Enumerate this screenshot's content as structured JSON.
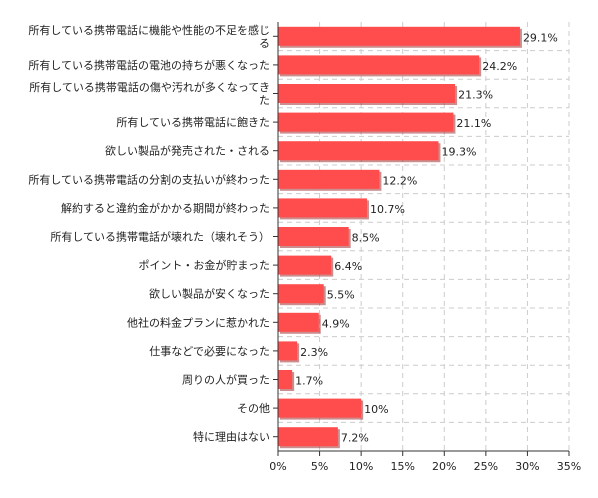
{
  "chart_data": {
    "type": "bar",
    "orientation": "horizontal",
    "title": "",
    "xlabel": "",
    "ylabel": "",
    "xlim": [
      0,
      35
    ],
    "x_ticks": [
      "0%",
      "5%",
      "10%",
      "15%",
      "20%",
      "25%",
      "30%",
      "35%"
    ],
    "grid": true,
    "grid_style": "dashed",
    "bar_color": "#ff4d4d",
    "bar_shadow_color": "#a03030",
    "categories": [
      [
        "所有している携帯電話に機能や性能の不足を感じ",
        "る"
      ],
      [
        "所有している携帯電話の電池の持ちが悪くなった"
      ],
      [
        "所有している携帯電話の傷や汚れが多くなってき",
        "た"
      ],
      [
        "所有している携帯電話に飽きた"
      ],
      [
        "欲しい製品が発売された・される"
      ],
      [
        "所有している携帯電話の分割の支払いが終わった"
      ],
      [
        "解約すると違約金がかかる期間が終わった"
      ],
      [
        "所有している携帯電話が壊れた（壊れそう）"
      ],
      [
        "ポイント・お金が貯まった"
      ],
      [
        "欲しい製品が安くなった"
      ],
      [
        "他社の料金プランに惹かれた"
      ],
      [
        "仕事などで必要になった"
      ],
      [
        "周りの人が買った"
      ],
      [
        "その他"
      ],
      [
        "特に理由はない"
      ]
    ],
    "values": [
      29.1,
      24.2,
      21.3,
      21.1,
      19.3,
      12.2,
      10.7,
      8.5,
      6.4,
      5.5,
      4.9,
      2.3,
      1.7,
      10,
      7.2
    ],
    "value_labels": [
      "29.1%",
      "24.2%",
      "21.3%",
      "21.1%",
      "19.3%",
      "12.2%",
      "10.7%",
      "8.5%",
      "6.4%",
      "5.5%",
      "4.9%",
      "2.3%",
      "1.7%",
      "10%",
      "7.2%"
    ]
  }
}
